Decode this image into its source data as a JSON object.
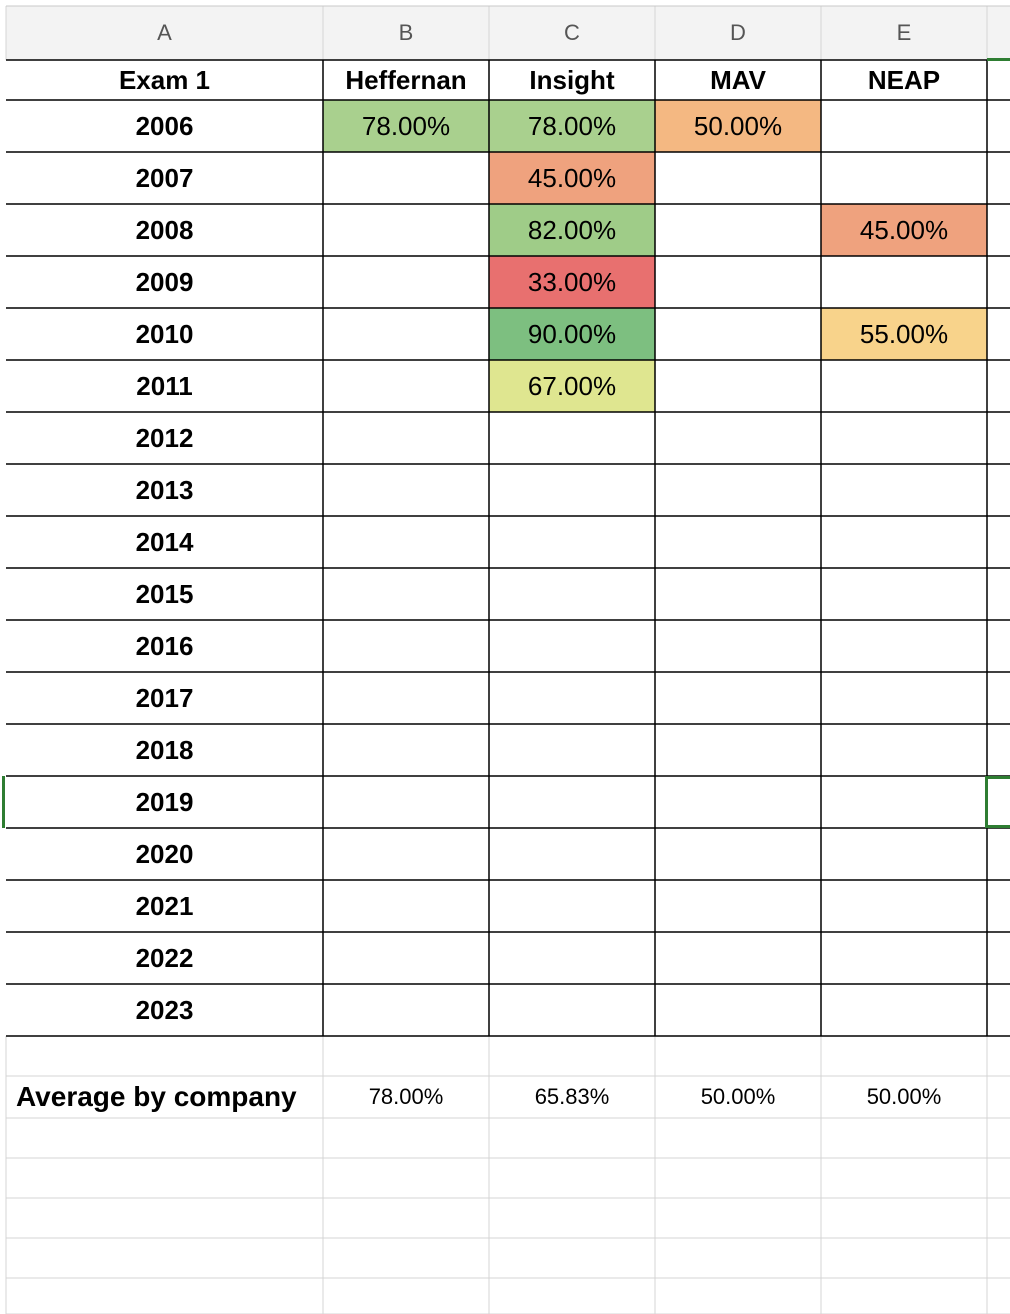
{
  "column_headers": [
    "A",
    "B",
    "C",
    "D",
    "E"
  ],
  "header_row": {
    "label": "Exam 1",
    "companies": [
      "Heffernan",
      "Insight",
      "MAV",
      "NEAP"
    ]
  },
  "rows": [
    {
      "year": "2006",
      "values": [
        "78.00%",
        "78.00%",
        "50.00%",
        ""
      ]
    },
    {
      "year": "2007",
      "values": [
        "",
        "45.00%",
        "",
        ""
      ]
    },
    {
      "year": "2008",
      "values": [
        "",
        "82.00%",
        "",
        "45.00%"
      ]
    },
    {
      "year": "2009",
      "values": [
        "",
        "33.00%",
        "",
        ""
      ]
    },
    {
      "year": "2010",
      "values": [
        "",
        "90.00%",
        "",
        "55.00%"
      ]
    },
    {
      "year": "2011",
      "values": [
        "",
        "67.00%",
        "",
        ""
      ]
    },
    {
      "year": "2012",
      "values": [
        "",
        "",
        "",
        ""
      ]
    },
    {
      "year": "2013",
      "values": [
        "",
        "",
        "",
        ""
      ]
    },
    {
      "year": "2014",
      "values": [
        "",
        "",
        "",
        ""
      ]
    },
    {
      "year": "2015",
      "values": [
        "",
        "",
        "",
        ""
      ]
    },
    {
      "year": "2016",
      "values": [
        "",
        "",
        "",
        ""
      ]
    },
    {
      "year": "2017",
      "values": [
        "",
        "",
        "",
        ""
      ]
    },
    {
      "year": "2018",
      "values": [
        "",
        "",
        "",
        ""
      ]
    },
    {
      "year": "2019",
      "values": [
        "",
        "",
        "",
        ""
      ]
    },
    {
      "year": "2020",
      "values": [
        "",
        "",
        "",
        ""
      ]
    },
    {
      "year": "2021",
      "values": [
        "",
        "",
        "",
        ""
      ]
    },
    {
      "year": "2022",
      "values": [
        "",
        "",
        "",
        ""
      ]
    },
    {
      "year": "2023",
      "values": [
        "",
        "",
        "",
        ""
      ]
    }
  ],
  "average_row": {
    "label": "Average by company",
    "values": [
      "78.00%",
      "65.83%",
      "50.00%",
      "50.00%"
    ]
  },
  "conditional_format_colors": {
    "78.00%": "#a9d08e",
    "50.00%": "#f4b882",
    "45.00%": "#efa27e",
    "82.00%": "#9fcc88",
    "33.00%": "#e8706f",
    "90.00%": "#7dbf80",
    "55.00%": "#f8d38b",
    "67.00%": "#dfe690"
  },
  "colors": {
    "header_background": "#f3f3f3",
    "grid_line": "#d4d4d4",
    "border": "#000000",
    "selection": "#2e7d32"
  }
}
